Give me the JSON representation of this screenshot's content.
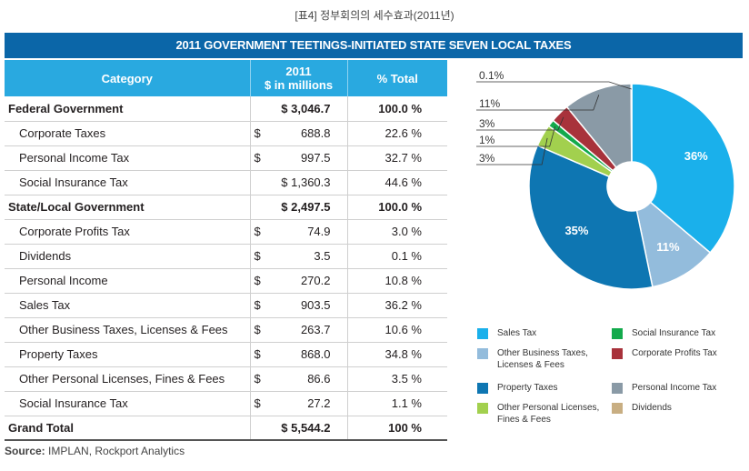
{
  "caption": "[표4] 정부회의의 세수효과(2011년)",
  "banner": "2011 GOVERNMENT TEETINGS-INITIATED STATE SEVEN LOCAL TAXES",
  "table": {
    "headers": {
      "category": "Category",
      "amount_line1": "2011",
      "amount_line2": "$ in millions",
      "pct": "% Total"
    },
    "rows": [
      {
        "category": "Federal Government",
        "dollar": "",
        "amount": "$ 3,046.7",
        "pct": "100.0 %",
        "bold": true,
        "sub": false
      },
      {
        "category": "Corporate Taxes",
        "dollar": "$",
        "amount": "688.8",
        "pct": "22.6 %",
        "bold": false,
        "sub": true
      },
      {
        "category": "Personal Income Tax",
        "dollar": "$",
        "amount": "997.5",
        "pct": "32.7 %",
        "bold": false,
        "sub": true
      },
      {
        "category": "Social Insurance Tax",
        "dollar": "",
        "amount": "$ 1,360.3",
        "pct": "44.6 %",
        "bold": false,
        "sub": true
      },
      {
        "category": "State/Local Government",
        "dollar": "",
        "amount": "$ 2,497.5",
        "pct": "100.0 %",
        "bold": true,
        "sub": false
      },
      {
        "category": "Corporate Profits Tax",
        "dollar": "$",
        "amount": "74.9",
        "pct": "3.0 %",
        "bold": false,
        "sub": true
      },
      {
        "category": "Dividends",
        "dollar": "$",
        "amount": "3.5",
        "pct": "0.1 %",
        "bold": false,
        "sub": true
      },
      {
        "category": "Personal Income",
        "dollar": "$",
        "amount": "270.2",
        "pct": "10.8 %",
        "bold": false,
        "sub": true
      },
      {
        "category": "Sales Tax",
        "dollar": "$",
        "amount": "903.5",
        "pct": "36.2 %",
        "bold": false,
        "sub": true
      },
      {
        "category": "Other Business Taxes, Licenses & Fees",
        "dollar": "$",
        "amount": "263.7",
        "pct": "10.6 %",
        "bold": false,
        "sub": true
      },
      {
        "category": "Property Taxes",
        "dollar": "$",
        "amount": "868.0",
        "pct": "34.8 %",
        "bold": false,
        "sub": true
      },
      {
        "category": "Other Personal Licenses, Fines & Fees",
        "dollar": "$",
        "amount": "86.6",
        "pct": "3.5 %",
        "bold": false,
        "sub": true
      },
      {
        "category": "Social Insurance Tax",
        "dollar": "$",
        "amount": "27.2",
        "pct": "1.1 %",
        "bold": false,
        "sub": true
      },
      {
        "category": "Grand Total",
        "dollar": "",
        "amount": "$ 5,544.2",
        "pct": "100 %",
        "bold": true,
        "sub": false
      }
    ]
  },
  "source_label": "Source:",
  "source_text": " IMPLAN, Rockport Analytics",
  "chart_data": {
    "type": "pie",
    "donut": true,
    "slices": [
      {
        "name": "Sales Tax",
        "value": 36.2,
        "label": "36%",
        "color": "#1ab0eb"
      },
      {
        "name": "Other Business Taxes, Licenses & Fees",
        "value": 10.6,
        "label": "11%",
        "color": "#93bcdc"
      },
      {
        "name": "Property Taxes",
        "value": 34.8,
        "label": "35%",
        "color": "#0e76b2"
      },
      {
        "name": "Other Personal Licenses, Fines & Fees",
        "value": 3.5,
        "label": "3%",
        "color": "#a2d04e"
      },
      {
        "name": "Social Insurance Tax",
        "value": 1.1,
        "label": "1%",
        "color": "#13aa4c"
      },
      {
        "name": "Corporate Profits Tax",
        "value": 3.0,
        "label": "3%",
        "color": "#a8323b"
      },
      {
        "name": "Personal Income Tax",
        "value": 10.8,
        "label": "11%",
        "color": "#8a9aa6"
      },
      {
        "name": "Dividends",
        "value": 0.1,
        "label": "0.1%",
        "color": "#c8ae82"
      }
    ],
    "legend": [
      {
        "name": "Sales Tax",
        "color": "#1ab0eb"
      },
      {
        "name": "Social Insurance Tax",
        "color": "#13aa4c"
      },
      {
        "name": "Other Business Taxes, Licenses & Fees",
        "color": "#93bcdc"
      },
      {
        "name": "Corporate Profits Tax",
        "color": "#a8323b"
      },
      {
        "name": "Property Taxes",
        "color": "#0e76b2"
      },
      {
        "name": "Personal Income Tax",
        "color": "#8a9aa6"
      },
      {
        "name": "Other Personal Licenses, Fines & Fees",
        "color": "#a2d04e"
      },
      {
        "name": "Dividends",
        "color": "#c8ae82"
      }
    ]
  }
}
